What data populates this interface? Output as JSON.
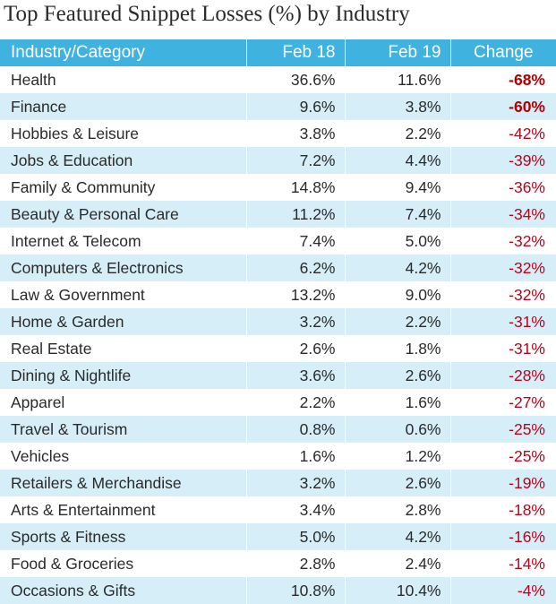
{
  "title": "Top Featured Snippet Losses (%) by Industry",
  "colors": {
    "header_bg": "#3fb2df",
    "alt_row_bg": "#d6eef8",
    "change_text": "#c0001a"
  },
  "chart_data": {
    "type": "table",
    "title": "Top Featured Snippet Losses (%) by Industry",
    "columns": [
      "Industry/Category",
      "Feb 18",
      "Feb 19",
      "Change"
    ],
    "rows": [
      [
        "Health",
        "36.6%",
        "11.6%",
        "-68%"
      ],
      [
        "Finance",
        "9.6%",
        "3.8%",
        "-60%"
      ],
      [
        "Hobbies & Leisure",
        "3.8%",
        "2.2%",
        "-42%"
      ],
      [
        "Jobs & Education",
        "7.2%",
        "4.4%",
        "-39%"
      ],
      [
        "Family & Community",
        "14.8%",
        "9.4%",
        "-36%"
      ],
      [
        "Beauty & Personal Care",
        "11.2%",
        "7.4%",
        "-34%"
      ],
      [
        "Internet & Telecom",
        "7.4%",
        "5.0%",
        "-32%"
      ],
      [
        "Computers & Electronics",
        "6.2%",
        "4.2%",
        "-32%"
      ],
      [
        "Law & Government",
        "13.2%",
        "9.0%",
        "-32%"
      ],
      [
        "Home & Garden",
        "3.2%",
        "2.2%",
        "-31%"
      ],
      [
        "Real Estate",
        "2.6%",
        "1.8%",
        "-31%"
      ],
      [
        "Dining & Nightlife",
        "3.6%",
        "2.6%",
        "-28%"
      ],
      [
        "Apparel",
        "2.2%",
        "1.6%",
        "-27%"
      ],
      [
        "Travel & Tourism",
        "0.8%",
        "0.6%",
        "-25%"
      ],
      [
        "Vehicles",
        "1.6%",
        "1.2%",
        "-25%"
      ],
      [
        "Retailers & Merchandise",
        "3.2%",
        "2.6%",
        "-19%"
      ],
      [
        "Arts & Entertainment",
        "3.4%",
        "2.8%",
        "-18%"
      ],
      [
        "Sports & Fitness",
        "5.0%",
        "4.2%",
        "-16%"
      ],
      [
        "Food & Groceries",
        "2.8%",
        "2.4%",
        "-14%"
      ],
      [
        "Occasions & Gifts",
        "10.8%",
        "10.4%",
        "-4%"
      ]
    ],
    "emphasized_changes": [
      "-68%",
      "-60%"
    ]
  }
}
